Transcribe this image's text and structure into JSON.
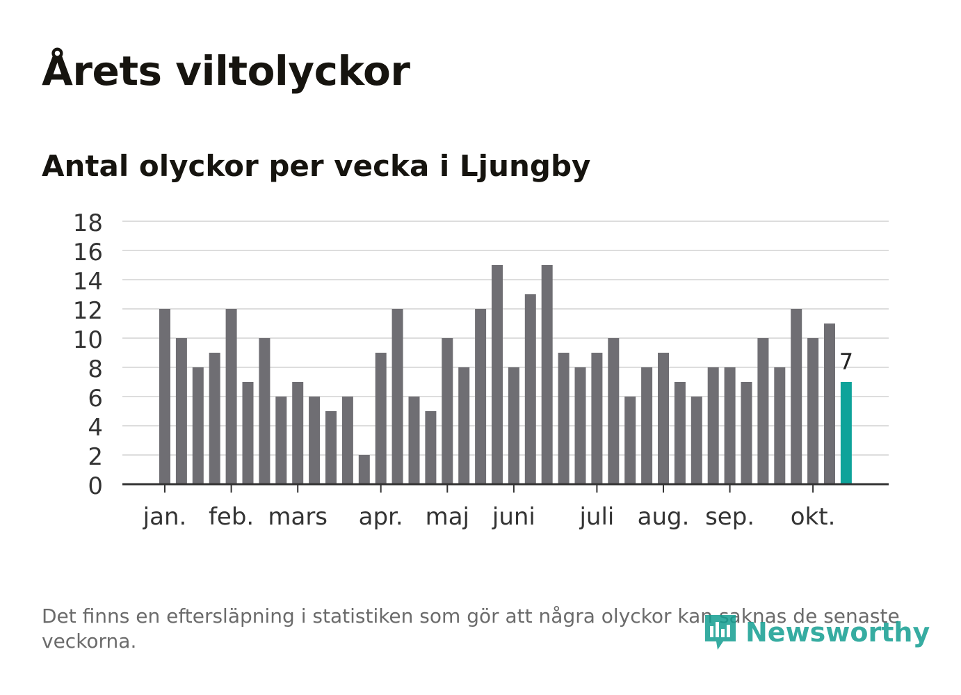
{
  "title": "Årets viltolyckor",
  "subtitle": "Antal olyckor per vecka i Ljungby",
  "footnote": "Det finns en eftersläpning i statistiken som gör att några olyckor kan saknas de senaste veckorna.",
  "logo": {
    "name": "Newsworthy",
    "icon": "newsworthy-chart-icon"
  },
  "colors": {
    "bar": "#6f6e73",
    "highlight": "#0ea39a",
    "grid": "#dddddd",
    "axis": "#333333",
    "text": "#333333"
  },
  "chart_data": {
    "type": "bar",
    "title": "Antal olyckor per vecka i Ljungby",
    "xlabel": "",
    "ylabel": "",
    "ylim": [
      0,
      18
    ],
    "yticks": [
      0,
      2,
      4,
      6,
      8,
      10,
      12,
      14,
      16,
      18
    ],
    "grid": true,
    "month_labels": [
      {
        "label": "jan.",
        "week": 1
      },
      {
        "label": "feb.",
        "week": 5
      },
      {
        "label": "mars",
        "week": 9
      },
      {
        "label": "apr.",
        "week": 14
      },
      {
        "label": "maj",
        "week": 18
      },
      {
        "label": "juni",
        "week": 22
      },
      {
        "label": "juli",
        "week": 27
      },
      {
        "label": "aug.",
        "week": 31
      },
      {
        "label": "sep.",
        "week": 35
      },
      {
        "label": "okt.",
        "week": 40
      }
    ],
    "categories": [
      1,
      2,
      3,
      4,
      5,
      6,
      7,
      8,
      9,
      10,
      11,
      12,
      13,
      14,
      15,
      16,
      17,
      18,
      19,
      20,
      21,
      22,
      23,
      24,
      25,
      26,
      27,
      28,
      29,
      30,
      31,
      32,
      33,
      34,
      35,
      36,
      37,
      38,
      39,
      40,
      41,
      42
    ],
    "values": [
      12,
      10,
      8,
      9,
      12,
      7,
      10,
      6,
      7,
      6,
      5,
      6,
      2,
      9,
      12,
      6,
      5,
      10,
      8,
      12,
      15,
      8,
      13,
      15,
      9,
      8,
      9,
      10,
      6,
      8,
      9,
      7,
      6,
      8,
      8,
      7,
      10,
      8,
      12,
      10,
      11,
      7
    ],
    "highlight_index": 41,
    "highlight_label": "7"
  }
}
